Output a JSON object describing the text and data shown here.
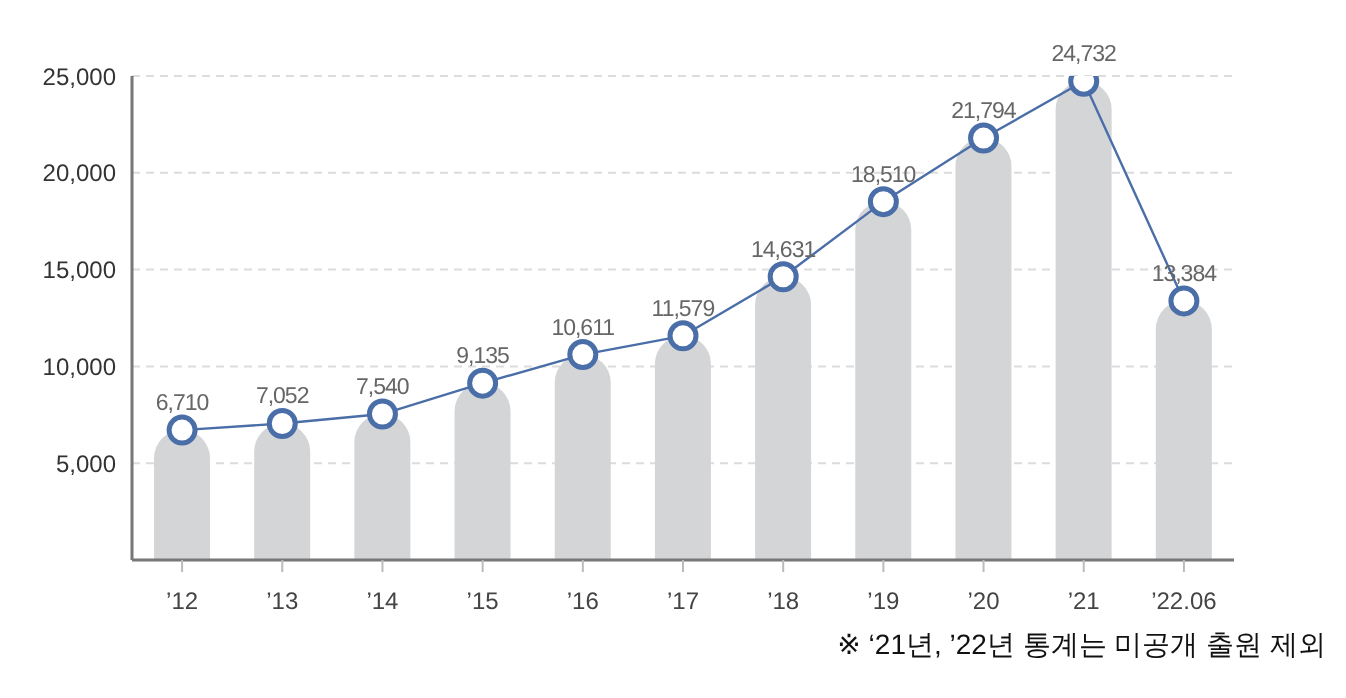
{
  "chart_data": {
    "type": "bar",
    "categories": [
      "’12",
      "’13",
      "’14",
      "’15",
      "’16",
      "’17",
      "’18",
      "’19",
      "’20",
      "’21",
      "’22.06"
    ],
    "series": [
      {
        "color": "#d4d5d7",
        "values": [
          6710,
          7052,
          7540,
          9135,
          10611,
          11579,
          14631,
          18510,
          21794,
          24732,
          13384
        ],
        "value_labels": [
          "6,710",
          "7,052",
          "7,540",
          "9,135",
          "10,611",
          "11,579",
          "14,631",
          "18,510",
          "21,794",
          "24,732",
          "13,384"
        ]
      },
      {
        "type": "line",
        "color": "#4a6ea8",
        "values": [
          6710,
          7052,
          7540,
          9135,
          10611,
          11579,
          14631,
          18510,
          21794,
          24732,
          13384
        ]
      }
    ],
    "ylim": [
      0,
      25000
    ],
    "yticks": [
      {
        "value": 5000,
        "label": "5,000"
      },
      {
        "value": 10000,
        "label": "10,000"
      },
      {
        "value": 15000,
        "label": "15,000"
      },
      {
        "value": 20000,
        "label": "20,000"
      },
      {
        "value": 25000,
        "label": "25,000"
      }
    ],
    "grid": "y",
    "marker": "circle",
    "line_style": "solid",
    "legend": false,
    "annotations": [
      "※ ‘21년, ’22년 통계는 미공개 출원 제외"
    ]
  }
}
